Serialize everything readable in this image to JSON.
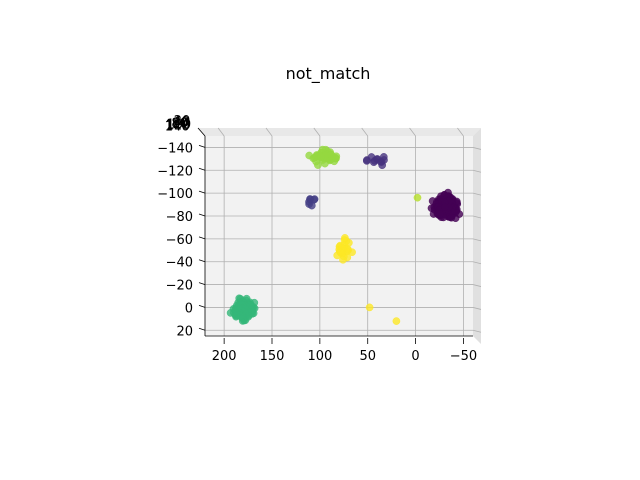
{
  "chart_data": {
    "type": "scatter",
    "projection": "3d",
    "title": "not_match",
    "xlabel": "",
    "ylabel": "",
    "x_axis": {
      "ticks": [
        200,
        150,
        100,
        50,
        0,
        -50
      ],
      "lim": [
        220,
        -60
      ]
    },
    "y_axis": {
      "ticks": [
        -140,
        -120,
        -100,
        -80,
        -60,
        -40,
        -20,
        0,
        20
      ],
      "lim": [
        -150,
        25
      ]
    },
    "z_axis": {
      "tick_labels": [
        "20",
        "40",
        "60",
        "80",
        "100",
        "120",
        "140"
      ]
    },
    "grid": true,
    "colors": {
      "purple_dark": "#440154",
      "purple": "#46327e",
      "purple_mid": "#433e85",
      "green": "#35b779",
      "lime": "#95d840",
      "yellow": "#fde725",
      "yellow_green": "#b5de2b"
    },
    "series": [
      {
        "color": "#440154",
        "center": [
          -32,
          -88
        ],
        "spread": [
          10,
          8
        ],
        "count": 160
      },
      {
        "color": "#35b779",
        "center": [
          180,
          2
        ],
        "spread": [
          9,
          8
        ],
        "count": 150
      },
      {
        "color": "#95d840",
        "center": [
          95,
          -132
        ],
        "spread": [
          12,
          5
        ],
        "count": 55
      },
      {
        "color": "#46327e",
        "center": [
          40,
          -128
        ],
        "spread": [
          9,
          4
        ],
        "count": 12
      },
      {
        "color": "#433e85",
        "center": [
          110,
          -92
        ],
        "spread": [
          4,
          5
        ],
        "count": 7
      },
      {
        "color": "#fde725",
        "center": [
          75,
          -50
        ],
        "spread": [
          6,
          10
        ],
        "count": 28
      },
      {
        "color": "#b5de2b",
        "center": [
          -2,
          -96
        ],
        "spread": [
          0.5,
          0.5
        ],
        "count": 1
      },
      {
        "color": "#fde725",
        "center": [
          48,
          0
        ],
        "spread": [
          0.5,
          0.5
        ],
        "count": 1
      },
      {
        "color": "#fde725",
        "center": [
          20,
          12
        ],
        "spread": [
          0.5,
          0.5
        ],
        "count": 1
      }
    ]
  }
}
